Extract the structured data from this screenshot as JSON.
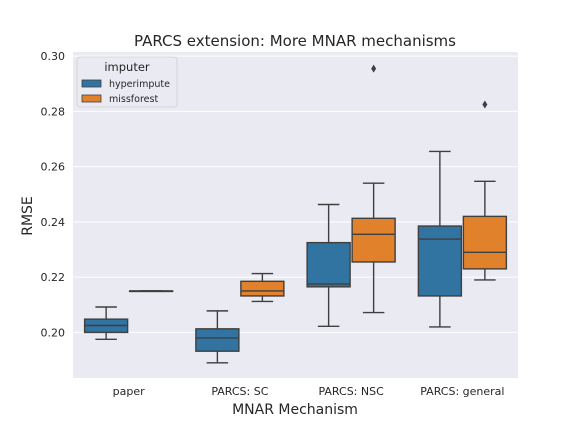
{
  "chart_data": {
    "type": "box",
    "title": "PARCS extension: More MNAR mechanisms",
    "xlabel": "MNAR Mechanism",
    "ylabel": "RMSE",
    "categories": [
      "paper",
      "PARCS: SC",
      "PARCS: NSC",
      "PARCS: general"
    ],
    "ylim": [
      0.1835,
      0.3015
    ],
    "yticks": [
      0.2,
      0.22,
      0.24,
      0.26,
      0.28,
      0.3
    ],
    "ytick_labels": [
      "0.20",
      "0.22",
      "0.24",
      "0.26",
      "0.28",
      "0.30"
    ],
    "grid": true,
    "legend": {
      "title": "imputer",
      "position": "top-left"
    },
    "series": [
      {
        "name": "hyperimpute",
        "color": "#3274a1",
        "boxes": [
          {
            "whisker_low": 0.1975,
            "q1": 0.2,
            "median": 0.2025,
            "q3": 0.2048,
            "whisker_high": 0.2092,
            "outliers": []
          },
          {
            "whisker_low": 0.189,
            "q1": 0.1932,
            "median": 0.198,
            "q3": 0.2013,
            "whisker_high": 0.2078,
            "outliers": []
          },
          {
            "whisker_low": 0.2022,
            "q1": 0.2165,
            "median": 0.2175,
            "q3": 0.2325,
            "whisker_high": 0.2463,
            "outliers": []
          },
          {
            "whisker_low": 0.202,
            "q1": 0.2132,
            "median": 0.2338,
            "q3": 0.2385,
            "whisker_high": 0.2655,
            "outliers": []
          }
        ]
      },
      {
        "name": "missforest",
        "color": "#e1812c",
        "boxes": [
          {
            "whisker_low": 0.215,
            "q1": 0.215,
            "median": 0.215,
            "q3": 0.215,
            "whisker_high": 0.215,
            "outliers": []
          },
          {
            "whisker_low": 0.2112,
            "q1": 0.2132,
            "median": 0.215,
            "q3": 0.2185,
            "whisker_high": 0.2213,
            "outliers": []
          },
          {
            "whisker_low": 0.2072,
            "q1": 0.2255,
            "median": 0.2355,
            "q3": 0.2413,
            "whisker_high": 0.254,
            "outliers": [
              0.2955
            ]
          },
          {
            "whisker_low": 0.219,
            "q1": 0.223,
            "median": 0.229,
            "q3": 0.242,
            "whisker_high": 0.2547,
            "outliers": [
              0.2825
            ]
          }
        ]
      }
    ]
  }
}
